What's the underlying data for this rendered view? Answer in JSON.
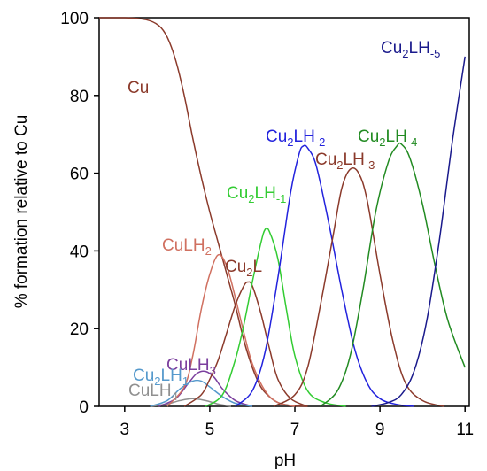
{
  "chart_data": {
    "type": "line",
    "title": "",
    "xlabel": "pH",
    "ylabel": "% formation relative to Cu",
    "xlim": [
      2.4,
      11.1
    ],
    "ylim": [
      0,
      100
    ],
    "x_ticks": [
      "3",
      "5",
      "7",
      "9",
      "11"
    ],
    "y_ticks": [
      "0",
      "20",
      "40",
      "60",
      "80",
      "100"
    ],
    "grid": false,
    "series": [
      {
        "name": "Cu",
        "label_parts": [
          "Cu"
        ],
        "color": "#8B3A2B",
        "x": [
          2.4,
          3.0,
          3.5,
          3.8,
          4.0,
          4.2,
          4.4,
          4.6,
          4.8,
          5.0,
          5.2,
          5.4,
          5.6,
          5.8,
          6.0,
          6.2,
          6.4,
          6.6,
          6.8,
          7.0,
          7.3
        ],
        "y": [
          100,
          100,
          99.5,
          98,
          95,
          89,
          80,
          69,
          59,
          50,
          42,
          34,
          26,
          17,
          10,
          5,
          2.5,
          1,
          0.4,
          0.1,
          0
        ]
      },
      {
        "name": "CuLH4",
        "label_parts": [
          "CuLH",
          "4"
        ],
        "color": "#909090",
        "x": [
          3.6,
          4.0,
          4.3,
          4.6,
          4.9,
          5.2,
          5.5
        ],
        "y": [
          0,
          0.6,
          1.5,
          2.0,
          1.5,
          0.6,
          0
        ]
      },
      {
        "name": "CuLH3",
        "label_parts": [
          "CuLH",
          "3"
        ],
        "color": "#7B3F9E",
        "x": [
          3.8,
          4.2,
          4.5,
          4.7,
          4.9,
          5.1,
          5.3,
          5.6,
          6.0
        ],
        "y": [
          0,
          2.0,
          6.0,
          8.5,
          9.0,
          7.5,
          4.5,
          1.5,
          0
        ]
      },
      {
        "name": "Cu2LH1",
        "label_parts": [
          "Cu",
          "2",
          "LH",
          "1"
        ],
        "color": "#5599CC",
        "x": [
          3.6,
          4.0,
          4.3,
          4.6,
          4.8,
          5.0,
          5.3,
          5.6,
          6.0
        ],
        "y": [
          0,
          1.5,
          4.5,
          6.5,
          6.5,
          5.0,
          2.5,
          0.8,
          0
        ]
      },
      {
        "name": "CuLH2",
        "label_parts": [
          "CuLH",
          "2"
        ],
        "color": "#D07060",
        "x": [
          4.0,
          4.4,
          4.6,
          4.8,
          5.0,
          5.2,
          5.4,
          5.6,
          5.8,
          6.0,
          6.3,
          6.6,
          7.0
        ],
        "y": [
          0,
          5,
          13,
          25,
          34,
          39,
          36,
          28,
          19,
          11,
          4,
          1,
          0
        ]
      },
      {
        "name": "Cu2L",
        "label_parts": [
          "Cu",
          "2",
          "L"
        ],
        "color": "#8B3A2B",
        "x": [
          4.4,
          4.8,
          5.0,
          5.2,
          5.4,
          5.6,
          5.8,
          5.9,
          6.0,
          6.2,
          6.4,
          6.6,
          6.9,
          7.3
        ],
        "y": [
          0,
          3,
          7,
          12,
          19,
          26,
          31,
          32,
          31,
          24,
          15,
          7,
          2,
          0
        ]
      },
      {
        "name": "Cu2LH-1",
        "label_parts": [
          "Cu",
          "2",
          "LH",
          "-1"
        ],
        "color": "#33CC33",
        "x": [
          4.9,
          5.3,
          5.6,
          5.8,
          6.0,
          6.2,
          6.3,
          6.4,
          6.6,
          6.8,
          7.0,
          7.3,
          7.7,
          8.2
        ],
        "y": [
          0,
          3,
          12,
          21,
          32,
          42,
          45.5,
          45,
          38,
          25,
          13,
          4,
          1,
          0
        ]
      },
      {
        "name": "Cu2LH-2",
        "label_parts": [
          "Cu",
          "2",
          "LH",
          "-2"
        ],
        "color": "#2222DD",
        "x": [
          5.6,
          6.0,
          6.3,
          6.6,
          6.9,
          7.1,
          7.2,
          7.3,
          7.5,
          7.8,
          8.1,
          8.4,
          8.7,
          9.0,
          9.4,
          9.8
        ],
        "y": [
          0,
          4,
          14,
          33,
          55,
          65,
          67,
          66.5,
          62,
          47,
          30,
          15,
          6,
          2,
          0.5,
          0
        ]
      },
      {
        "name": "Cu2LH-3",
        "label_parts": [
          "Cu",
          "2",
          "LH",
          "-3"
        ],
        "color": "#8B3A2B",
        "x": [
          6.5,
          7.0,
          7.3,
          7.6,
          7.9,
          8.1,
          8.3,
          8.5,
          8.7,
          9.0,
          9.3,
          9.6,
          10.0,
          10.5
        ],
        "y": [
          0,
          3,
          10,
          26,
          44,
          56,
          61,
          60,
          53,
          34,
          17,
          6,
          1.5,
          0
        ]
      },
      {
        "name": "Cu2LH-4",
        "label_parts": [
          "Cu",
          "2",
          "LH",
          "-4"
        ],
        "color": "#228B22",
        "x": [
          7.6,
          8.0,
          8.3,
          8.6,
          8.9,
          9.2,
          9.4,
          9.5,
          9.7,
          10.0,
          10.3,
          10.6,
          11.0
        ],
        "y": [
          0,
          4,
          13,
          30,
          50,
          63,
          67,
          67.5,
          64,
          52,
          36,
          22,
          10
        ]
      },
      {
        "name": "Cu2LH-5",
        "label_parts": [
          "Cu",
          "2",
          "LH",
          "-5"
        ],
        "color": "#1A1A8C",
        "x": [
          8.8,
          9.2,
          9.5,
          9.8,
          10.1,
          10.4,
          10.7,
          11.0
        ],
        "y": [
          0,
          1,
          3,
          9,
          22,
          43,
          68,
          90
        ]
      }
    ]
  }
}
